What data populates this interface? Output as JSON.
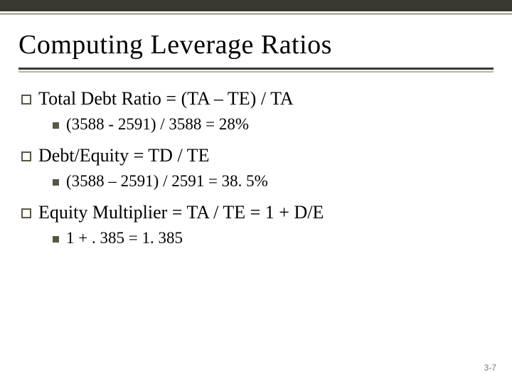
{
  "title": "Computing Leverage Ratios",
  "items": [
    {
      "text": "Total Debt Ratio = (TA – TE) / TA",
      "sub": "(3588 - 2591) / 3588 = 28%"
    },
    {
      "text": "Debt/Equity = TD / TE",
      "sub": "(3588 – 2591) / 2591 = 38. 5%"
    },
    {
      "text": "Equity Multiplier = TA / TE = 1 + D/E",
      "sub": "1 + . 385 = 1. 385"
    }
  ],
  "page_number": "3-7",
  "colors": {
    "stripe_dark": "#3a372f",
    "stripe_light": "#b9b49d",
    "marker": "#5a5640",
    "background": "#ffffff",
    "text": "#000000",
    "page_num": "#777777"
  },
  "typography": {
    "title_fontsize": 38,
    "level1_fontsize": 26,
    "level2_fontsize": 23,
    "page_num_fontsize": 12,
    "font_family": "Times New Roman"
  }
}
